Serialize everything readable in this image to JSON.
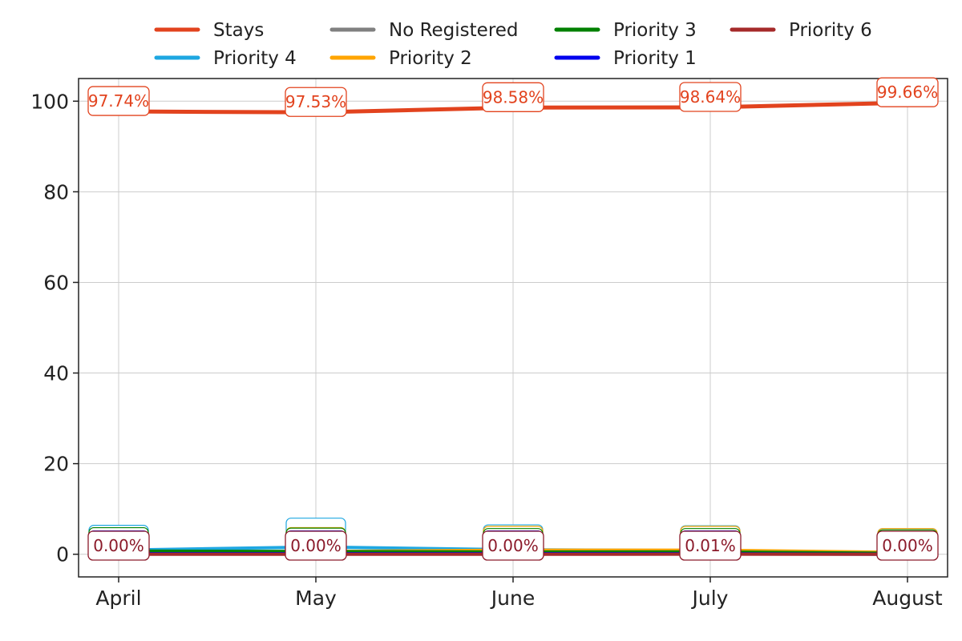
{
  "chart_data": {
    "type": "line",
    "categories": [
      "April",
      "May",
      "June",
      "July",
      "August"
    ],
    "ylim": [
      -5,
      105
    ],
    "yticks": [
      0,
      20,
      40,
      60,
      80,
      100
    ],
    "grid": true,
    "legend_position": "top",
    "series": [
      {
        "name": "Stays",
        "color": "#e2431e",
        "values": [
          97.74,
          97.53,
          98.58,
          98.64,
          99.66
        ]
      },
      {
        "name": "Priority 4",
        "color": "#1ea7e1",
        "values": [
          0.9,
          1.6,
          1.0,
          0.8,
          0.2
        ]
      },
      {
        "name": "No Registered",
        "color": "#808080",
        "values": [
          0.3,
          0.2,
          0.2,
          0.3,
          0.1
        ]
      },
      {
        "name": "Priority 2",
        "color": "#ffa500",
        "values": [
          0.5,
          0.6,
          0.9,
          0.9,
          0.4
        ]
      },
      {
        "name": "Priority 3",
        "color": "#008000",
        "values": [
          0.7,
          0.6,
          0.5,
          0.5,
          0.2
        ]
      },
      {
        "name": "Priority 1",
        "color": "#0000ee",
        "values": [
          0.1,
          0.1,
          0.1,
          0.1,
          0.0
        ]
      },
      {
        "name": "Priority 6",
        "color": "#a52a2a",
        "values": [
          0.0,
          0.0,
          0.0,
          0.01,
          0.0
        ]
      }
    ],
    "labels_top": [
      "97.74%",
      "97.53%",
      "98.58%",
      "98.64%",
      "99.66%"
    ],
    "labels_bottom": [
      "0.00%",
      "0.00%",
      "0.00%",
      "0.01%",
      "0.00%"
    ]
  }
}
